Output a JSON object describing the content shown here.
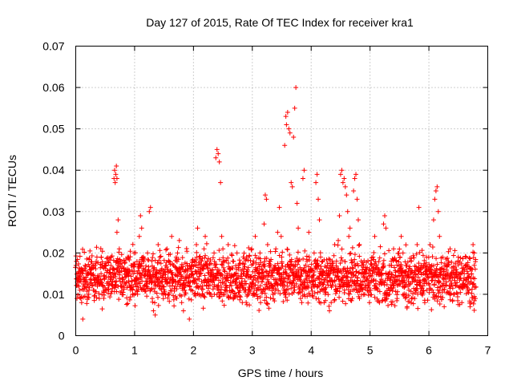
{
  "chart_data": {
    "type": "scatter",
    "title": "Day 127 of 2015, Rate Of TEC Index for receiver kra1",
    "xlabel": "GPS time / hours",
    "ylabel": "ROTI / TECUs",
    "xlim": [
      0,
      7
    ],
    "ylim": [
      0,
      0.07
    ],
    "xticks": [
      0,
      1,
      2,
      3,
      4,
      5,
      6,
      7
    ],
    "xtick_labels": [
      "0",
      "1",
      "2",
      "3",
      "4",
      "5",
      "6",
      "7"
    ],
    "yticks": [
      0,
      0.01,
      0.02,
      0.03,
      0.04,
      0.05,
      0.06,
      0.07
    ],
    "ytick_labels": [
      "0",
      "0.01",
      "0.02",
      "0.03",
      "0.04",
      "0.05",
      "0.06",
      "0.07"
    ],
    "grid": true,
    "marker": "+",
    "series": [
      {
        "name": "kra1",
        "color": "#ff0000",
        "x_range": [
          0.0,
          6.8
        ],
        "baseline_band": [
          0.005,
          0.023
        ],
        "points": [
          [
            0.02,
            0.009
          ],
          [
            0.05,
            0.014
          ],
          [
            0.07,
            0.011
          ],
          [
            0.1,
            0.008
          ],
          [
            0.12,
            0.004
          ],
          [
            0.14,
            0.012
          ],
          [
            0.16,
            0.017
          ],
          [
            0.18,
            0.013
          ],
          [
            0.2,
            0.015
          ],
          [
            0.22,
            0.01
          ],
          [
            0.25,
            0.016
          ],
          [
            0.28,
            0.012
          ],
          [
            0.3,
            0.011
          ],
          [
            0.33,
            0.014
          ],
          [
            0.36,
            0.019
          ],
          [
            0.38,
            0.013
          ],
          [
            0.4,
            0.009
          ],
          [
            0.43,
            0.015
          ],
          [
            0.46,
            0.012
          ],
          [
            0.49,
            0.017
          ],
          [
            0.52,
            0.011
          ],
          [
            0.55,
            0.013
          ],
          [
            0.58,
            0.016
          ],
          [
            0.6,
            0.019
          ],
          [
            0.63,
            0.012
          ],
          [
            0.65,
            0.038
          ],
          [
            0.66,
            0.04
          ],
          [
            0.67,
            0.037
          ],
          [
            0.68,
            0.039
          ],
          [
            0.69,
            0.041
          ],
          [
            0.7,
            0.038
          ],
          [
            0.7,
            0.025
          ],
          [
            0.72,
            0.028
          ],
          [
            0.74,
            0.021
          ],
          [
            0.76,
            0.018
          ],
          [
            0.79,
            0.014
          ],
          [
            0.82,
            0.012
          ],
          [
            0.85,
            0.016
          ],
          [
            0.88,
            0.019
          ],
          [
            0.9,
            0.013
          ],
          [
            0.93,
            0.011
          ],
          [
            0.96,
            0.017
          ],
          [
            0.99,
            0.02
          ],
          [
            1.02,
            0.014
          ],
          [
            1.05,
            0.01
          ],
          [
            1.08,
            0.024
          ],
          [
            1.1,
            0.029
          ],
          [
            1.12,
            0.026
          ],
          [
            1.15,
            0.019
          ],
          [
            1.18,
            0.016
          ],
          [
            1.2,
            0.012
          ],
          [
            1.22,
            0.02
          ],
          [
            1.25,
            0.03
          ],
          [
            1.27,
            0.031
          ],
          [
            1.3,
            0.009
          ],
          [
            1.32,
            0.006
          ],
          [
            1.35,
            0.005
          ],
          [
            1.38,
            0.015
          ],
          [
            1.4,
            0.022
          ],
          [
            1.43,
            0.019
          ],
          [
            1.46,
            0.013
          ],
          [
            1.49,
            0.01
          ],
          [
            1.52,
            0.016
          ],
          [
            1.55,
            0.021
          ],
          [
            1.58,
            0.018
          ],
          [
            1.6,
            0.012
          ],
          [
            1.63,
            0.024
          ],
          [
            1.66,
            0.017
          ],
          [
            1.7,
            0.013
          ],
          [
            1.73,
            0.02
          ],
          [
            1.76,
            0.023
          ],
          [
            1.8,
            0.008
          ],
          [
            1.83,
            0.006
          ],
          [
            1.86,
            0.012
          ],
          [
            1.9,
            0.016
          ],
          [
            1.93,
            0.004
          ],
          [
            1.96,
            0.011
          ],
          [
            1.99,
            0.015
          ],
          [
            2.02,
            0.018
          ],
          [
            2.05,
            0.022
          ],
          [
            2.07,
            0.026
          ],
          [
            2.1,
            0.019
          ],
          [
            2.12,
            0.015
          ],
          [
            2.15,
            0.012
          ],
          [
            2.18,
            0.021
          ],
          [
            2.2,
            0.024
          ],
          [
            2.23,
            0.017
          ],
          [
            2.26,
            0.013
          ],
          [
            2.29,
            0.01
          ],
          [
            2.32,
            0.016
          ],
          [
            2.35,
            0.02
          ],
          [
            2.38,
            0.043
          ],
          [
            2.4,
            0.045
          ],
          [
            2.42,
            0.044
          ],
          [
            2.44,
            0.042
          ],
          [
            2.46,
            0.037
          ],
          [
            2.48,
            0.024
          ],
          [
            2.5,
            0.021
          ],
          [
            2.53,
            0.018
          ],
          [
            2.56,
            0.014
          ],
          [
            2.59,
            0.022
          ],
          [
            2.62,
            0.016
          ],
          [
            2.65,
            0.011
          ],
          [
            2.68,
            0.009
          ],
          [
            2.71,
            0.013
          ],
          [
            2.74,
            0.02
          ],
          [
            2.77,
            0.017
          ],
          [
            2.8,
            0.012
          ],
          [
            2.83,
            0.008
          ],
          [
            2.86,
            0.015
          ],
          [
            2.9,
            0.019
          ],
          [
            2.93,
            0.011
          ],
          [
            2.96,
            0.014
          ],
          [
            2.99,
            0.021
          ],
          [
            3.02,
            0.018
          ],
          [
            3.05,
            0.024
          ],
          [
            3.08,
            0.016
          ],
          [
            3.1,
            0.013
          ],
          [
            3.13,
            0.02
          ],
          [
            3.16,
            0.015
          ],
          [
            3.2,
            0.027
          ],
          [
            3.22,
            0.034
          ],
          [
            3.24,
            0.033
          ],
          [
            3.26,
            0.022
          ],
          [
            3.29,
            0.018
          ],
          [
            3.32,
            0.012
          ],
          [
            3.35,
            0.01
          ],
          [
            3.38,
            0.016
          ],
          [
            3.4,
            0.021
          ],
          [
            3.43,
            0.025
          ],
          [
            3.46,
            0.031
          ],
          [
            3.49,
            0.024
          ],
          [
            3.5,
            0.019
          ],
          [
            3.53,
            0.014
          ],
          [
            3.55,
            0.046
          ],
          [
            3.57,
            0.053
          ],
          [
            3.58,
            0.051
          ],
          [
            3.6,
            0.054
          ],
          [
            3.62,
            0.05
          ],
          [
            3.64,
            0.049
          ],
          [
            3.66,
            0.037
          ],
          [
            3.68,
            0.036
          ],
          [
            3.7,
            0.048
          ],
          [
            3.72,
            0.055
          ],
          [
            3.74,
            0.06
          ],
          [
            3.76,
            0.032
          ],
          [
            3.78,
            0.026
          ],
          [
            3.8,
            0.014
          ],
          [
            3.82,
            0.009
          ],
          [
            3.84,
            0.008
          ],
          [
            3.86,
            0.038
          ],
          [
            3.88,
            0.04
          ],
          [
            3.9,
            0.012
          ],
          [
            3.93,
            0.018
          ],
          [
            3.96,
            0.025
          ],
          [
            3.99,
            0.016
          ],
          [
            4.02,
            0.013
          ],
          [
            4.05,
            0.02
          ],
          [
            4.08,
            0.037
          ],
          [
            4.1,
            0.039
          ],
          [
            4.12,
            0.033
          ],
          [
            4.14,
            0.028
          ],
          [
            4.16,
            0.019
          ],
          [
            4.19,
            0.011
          ],
          [
            4.22,
            0.008
          ],
          [
            4.25,
            0.014
          ],
          [
            4.28,
            0.017
          ],
          [
            4.31,
            0.006
          ],
          [
            4.34,
            0.008
          ],
          [
            4.37,
            0.013
          ],
          [
            4.4,
            0.022
          ],
          [
            4.43,
            0.018
          ],
          [
            4.46,
            0.023
          ],
          [
            4.48,
            0.029
          ],
          [
            4.5,
            0.039
          ],
          [
            4.52,
            0.04
          ],
          [
            4.54,
            0.037
          ],
          [
            4.56,
            0.038
          ],
          [
            4.58,
            0.036
          ],
          [
            4.6,
            0.034
          ],
          [
            4.62,
            0.03
          ],
          [
            4.64,
            0.024
          ],
          [
            4.66,
            0.026
          ],
          [
            4.68,
            0.012
          ],
          [
            4.7,
            0.009
          ],
          [
            4.72,
            0.035
          ],
          [
            4.74,
            0.038
          ],
          [
            4.76,
            0.039
          ],
          [
            4.78,
            0.033
          ],
          [
            4.8,
            0.028
          ],
          [
            4.82,
            0.022
          ],
          [
            4.85,
            0.018
          ],
          [
            4.88,
            0.013
          ],
          [
            4.91,
            0.01
          ],
          [
            4.94,
            0.016
          ],
          [
            4.97,
            0.012
          ],
          [
            4.99,
            0.008
          ],
          [
            5.02,
            0.013
          ],
          [
            5.05,
            0.019
          ],
          [
            5.08,
            0.024
          ],
          [
            5.1,
            0.016
          ],
          [
            5.13,
            0.011
          ],
          [
            5.16,
            0.008
          ],
          [
            5.2,
            0.015
          ],
          [
            5.23,
            0.027
          ],
          [
            5.25,
            0.029
          ],
          [
            5.27,
            0.026
          ],
          [
            5.3,
            0.014
          ],
          [
            5.33,
            0.01
          ],
          [
            5.36,
            0.017
          ],
          [
            5.4,
            0.021
          ],
          [
            5.43,
            0.013
          ],
          [
            5.46,
            0.009
          ],
          [
            5.5,
            0.016
          ],
          [
            5.53,
            0.024
          ],
          [
            5.56,
            0.02
          ],
          [
            5.6,
            0.012
          ],
          [
            5.63,
            0.007
          ],
          [
            5.66,
            0.011
          ],
          [
            5.7,
            0.018
          ],
          [
            5.73,
            0.014
          ],
          [
            5.76,
            0.009
          ],
          [
            5.8,
            0.022
          ],
          [
            5.83,
            0.031
          ],
          [
            5.86,
            0.016
          ],
          [
            5.9,
            0.012
          ],
          [
            5.93,
            0.008
          ],
          [
            5.96,
            0.019
          ],
          [
            5.99,
            0.014
          ],
          [
            6.02,
            0.022
          ],
          [
            6.05,
            0.017
          ],
          [
            6.08,
            0.028
          ],
          [
            6.1,
            0.033
          ],
          [
            6.12,
            0.035
          ],
          [
            6.14,
            0.036
          ],
          [
            6.16,
            0.03
          ],
          [
            6.18,
            0.024
          ],
          [
            6.2,
            0.016
          ],
          [
            6.23,
            0.011
          ],
          [
            6.26,
            0.007
          ],
          [
            6.3,
            0.013
          ],
          [
            6.33,
            0.018
          ],
          [
            6.36,
            0.021
          ],
          [
            6.4,
            0.014
          ],
          [
            6.43,
            0.01
          ],
          [
            6.46,
            0.016
          ],
          [
            6.5,
            0.019
          ],
          [
            6.53,
            0.012
          ],
          [
            6.56,
            0.008
          ],
          [
            6.6,
            0.015
          ],
          [
            6.63,
            0.017
          ],
          [
            6.66,
            0.011
          ],
          [
            6.7,
            0.007
          ],
          [
            6.72,
            0.013
          ],
          [
            6.75,
            0.022
          ],
          [
            6.77,
            0.02
          ],
          [
            6.79,
            0.009
          ]
        ]
      }
    ]
  }
}
